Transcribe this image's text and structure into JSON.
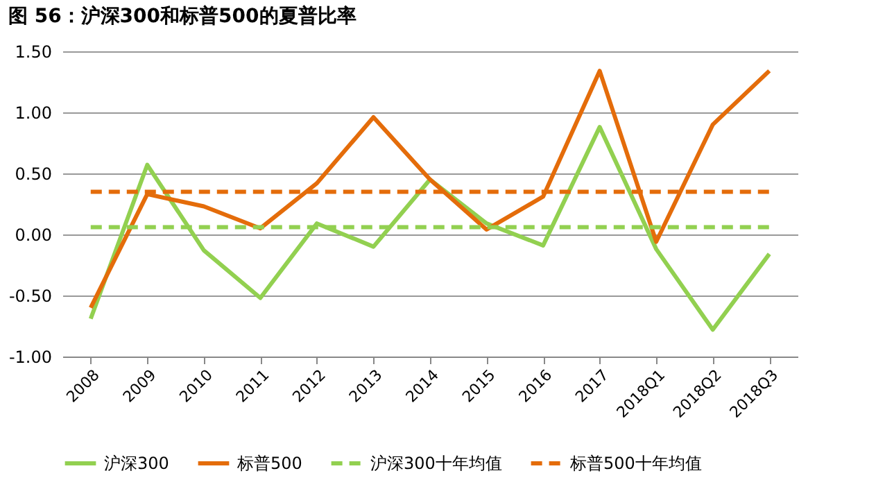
{
  "chart_data": {
    "type": "line",
    "title": "图 56：沪深300和标普500的夏普比率",
    "categories": [
      "2008",
      "2009",
      "2010",
      "2011",
      "2012",
      "2013",
      "2014",
      "2015",
      "2016",
      "2017",
      "2018Q1",
      "2018Q2",
      "2018Q3"
    ],
    "series": [
      {
        "name": "沪深300",
        "color": "#92d050",
        "line_style": "solid",
        "values": [
          -0.69,
          0.57,
          -0.13,
          -0.52,
          0.09,
          -0.1,
          0.45,
          0.09,
          -0.09,
          0.88,
          -0.12,
          -0.78,
          -0.16
        ]
      },
      {
        "name": "标普500",
        "color": "#e46c0a",
        "line_style": "solid",
        "values": [
          -0.6,
          0.33,
          0.23,
          0.05,
          0.42,
          0.96,
          0.45,
          0.04,
          0.31,
          1.34,
          -0.06,
          0.9,
          1.34
        ]
      },
      {
        "name": "沪深300十年均值",
        "color": "#92d050",
        "line_style": "dashed",
        "values": [
          0.06,
          0.06,
          0.06,
          0.06,
          0.06,
          0.06,
          0.06,
          0.06,
          0.06,
          0.06,
          0.06,
          0.06,
          0.06
        ]
      },
      {
        "name": "标普500十年均值",
        "color": "#e46c0a",
        "line_style": "dashed",
        "values": [
          0.35,
          0.35,
          0.35,
          0.35,
          0.35,
          0.35,
          0.35,
          0.35,
          0.35,
          0.35,
          0.35,
          0.35,
          0.35
        ]
      }
    ],
    "ylim": [
      -1.0,
      1.5
    ],
    "yticks": [
      {
        "value": -1.0,
        "label": "-1.00"
      },
      {
        "value": -0.5,
        "label": "-0.50"
      },
      {
        "value": 0,
        "label": "0.00"
      },
      {
        "value": 0.5,
        "label": "0.50"
      },
      {
        "value": 1.0,
        "label": "1.00"
      },
      {
        "value": 1.5,
        "label": "1.50"
      }
    ],
    "grid": "y",
    "legend": "bottom"
  }
}
